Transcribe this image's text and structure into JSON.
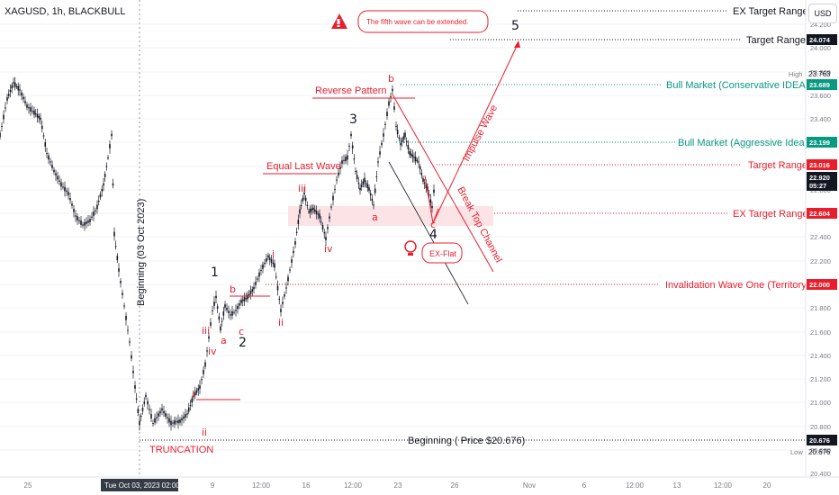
{
  "header": {
    "symbol": "XAGUSD, 1h, BLACKBULL",
    "currency": "USD"
  },
  "colors": {
    "up": "#131722",
    "accent_red": "#e91e2c",
    "accent_green": "#089981",
    "grid": "#f0f3fa"
  },
  "price_axis": {
    "ticks": [
      "24.200",
      "24.000",
      "23.800",
      "23.600",
      "23.400",
      "23.200",
      "23.000",
      "22.800",
      "22.600",
      "22.400",
      "22.200",
      "22.000",
      "21.800",
      "21.600",
      "21.400",
      "21.200",
      "21.000",
      "20.800",
      "20.600",
      "20.400"
    ],
    "high_label": "High",
    "high_value": "23.763",
    "low_label": "Low",
    "low_value": "20.676",
    "tags": [
      {
        "value": "24.074",
        "style": "dark"
      },
      {
        "value": "23.689",
        "style": "green"
      },
      {
        "value": "23.199",
        "style": "green"
      },
      {
        "value": "23.016",
        "style": "red"
      },
      {
        "value": "22.920",
        "style": "dark"
      },
      {
        "value": "05:27",
        "style": "dark"
      },
      {
        "value": "22.604",
        "style": "red"
      },
      {
        "value": "22.000",
        "style": "red"
      },
      {
        "value": "20.676",
        "style": "dark"
      }
    ]
  },
  "time_axis": {
    "labels": [
      "25",
      "9",
      "12:00",
      "16",
      "12:00",
      "23",
      "26",
      "Nov",
      "6",
      "12:00",
      "13",
      "12:00",
      "20"
    ],
    "cursor_label": "Tue Oct 03, 2023  02:00"
  },
  "annotations": {
    "callout": "The fifth wave can be extended.",
    "ex_target_range_top": "EX Target Range",
    "target_range_top": "Target Range",
    "bull_conservative": "Bull Market (Conservative IDEA)",
    "bull_aggressive": "Bull Market (Aggressive Idea)",
    "target_range": "Target Range",
    "ex_target_range": "EX Target Range",
    "invalidation": "Invalidation Wave One (Territory)",
    "beginning_price": "Beginning ( Price $20.676)",
    "beginning_vertical": "Beginning (03 Oct 2023)",
    "truncation": "TRUNCATION",
    "reverse_pattern": "Reverse Pattern",
    "equal_last_wave": "Equal Last Wave",
    "impulse_wave": "Impulse Wave",
    "break_top_channel": "Break Top Channel",
    "ex_flat": "EX-Flat"
  },
  "waves": {
    "major": [
      "1",
      "2",
      "3",
      "4",
      "5"
    ],
    "minor": [
      "i",
      "ii",
      "iii",
      "iv",
      "i",
      "ii",
      "iii",
      "iv"
    ],
    "abc": [
      "a",
      "b",
      "c",
      "a",
      "b",
      "c"
    ]
  }
}
